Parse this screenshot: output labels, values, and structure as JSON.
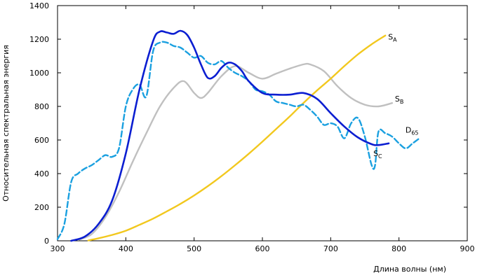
{
  "chart_data": {
    "type": "line",
    "title": "",
    "xlabel": "Длина волны (нм)",
    "ylabel": "Относительная спектральная энергия",
    "xlim": [
      300,
      900
    ],
    "ylim": [
      0,
      1400
    ],
    "xticks": [
      300,
      400,
      500,
      600,
      700,
      800,
      900
    ],
    "yticks": [
      0,
      200,
      400,
      600,
      800,
      1000,
      1200,
      1400
    ],
    "grid": false,
    "legend": "none",
    "series": [
      {
        "name": "SA",
        "label_main": "S",
        "label_sub": "A",
        "color": "#f2c81e",
        "style": "solid",
        "x": [
          345,
          360,
          380,
          400,
          420,
          440,
          460,
          480,
          500,
          520,
          540,
          560,
          580,
          600,
          620,
          640,
          660,
          680,
          700,
          720,
          740,
          760,
          780
        ],
        "y": [
          2,
          15,
          35,
          60,
          95,
          132,
          175,
          220,
          270,
          325,
          385,
          450,
          518,
          590,
          665,
          740,
          820,
          895,
          965,
          1040,
          1110,
          1170,
          1222
        ]
      },
      {
        "name": "SB",
        "label_main": "S",
        "label_sub": "B",
        "color": "#c0c0c0",
        "style": "solid",
        "x": [
          330,
          350,
          370,
          390,
          410,
          430,
          450,
          470,
          485,
          500,
          510,
          520,
          540,
          560,
          580,
          600,
          620,
          640,
          660,
          670,
          690,
          710,
          730,
          750,
          770,
          790
        ],
        "y": [
          5,
          40,
          140,
          290,
          470,
          640,
          800,
          910,
          950,
          880,
          850,
          880,
          980,
          1040,
          1000,
          965,
          995,
          1025,
          1050,
          1050,
          1010,
          920,
          850,
          810,
          800,
          820
        ]
      },
      {
        "name": "SC",
        "label_main": "S",
        "label_sub": "C",
        "color": "#0b1ed1",
        "style": "solid",
        "x": [
          320,
          340,
          360,
          380,
          400,
          420,
          440,
          450,
          460,
          470,
          480,
          490,
          500,
          510,
          520,
          530,
          540,
          550,
          560,
          570,
          580,
          600,
          620,
          640,
          660,
          680,
          700,
          720,
          740,
          760,
          770,
          785
        ],
        "y": [
          0,
          25,
          100,
          240,
          520,
          900,
          1190,
          1245,
          1240,
          1232,
          1250,
          1225,
          1150,
          1050,
          970,
          980,
          1030,
          1060,
          1050,
          1010,
          950,
          880,
          870,
          870,
          880,
          845,
          760,
          680,
          615,
          575,
          570,
          580
        ]
      },
      {
        "name": "D65",
        "label_main": "D",
        "label_sub": "65",
        "color": "#1aa0e0",
        "style": "dashed",
        "x": [
          300,
          310,
          320,
          330,
          340,
          350,
          360,
          370,
          380,
          390,
          400,
          410,
          420,
          430,
          440,
          450,
          460,
          470,
          480,
          490,
          500,
          510,
          520,
          530,
          540,
          550,
          560,
          570,
          580,
          590,
          600,
          610,
          620,
          630,
          640,
          650,
          660,
          670,
          680,
          690,
          700,
          710,
          720,
          730,
          740,
          750,
          760,
          765,
          770,
          780,
          790,
          800,
          810,
          820,
          830
        ],
        "y": [
          10,
          100,
          350,
          400,
          430,
          450,
          480,
          510,
          500,
          550,
          800,
          900,
          930,
          860,
          1130,
          1180,
          1180,
          1160,
          1150,
          1120,
          1090,
          1100,
          1060,
          1050,
          1070,
          1030,
          1000,
          980,
          950,
          900,
          890,
          870,
          830,
          820,
          810,
          800,
          810,
          780,
          740,
          690,
          700,
          680,
          610,
          700,
          730,
          620,
          450,
          450,
          650,
          640,
          620,
          580,
          550,
          580,
          610
        ]
      }
    ]
  }
}
